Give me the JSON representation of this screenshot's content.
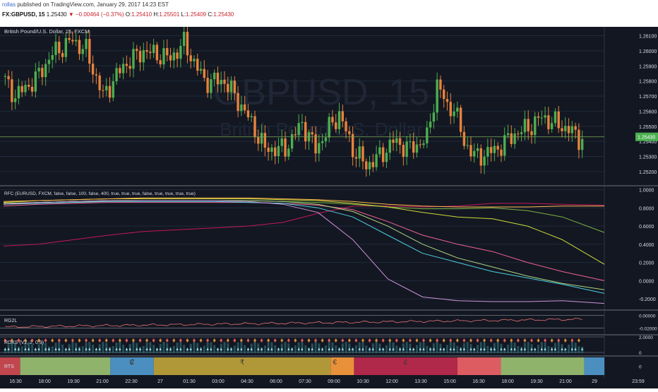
{
  "header": {
    "author": "rollas",
    "published": "published on TradingView.com, January 29, 2017 14:23 EST",
    "symbol": "FX:GBPUSD, 15",
    "last": "1.25430",
    "change": "▼ −0.00464 (−0.37%)",
    "o_label": "O:",
    "o_value": "1.25410",
    "h_label": "H:",
    "h_value": "1.25501",
    "l_label": "L:",
    "l_value": "1.25409",
    "c_label": "C:",
    "c_value": "1.25430"
  },
  "watermark": {
    "symbol": "GBPUSD, 15",
    "name": "British Pound/U.S. Dollar"
  },
  "colors": {
    "background": "#131722",
    "grid": "#1f2b3b",
    "up": "#4caf50",
    "down": "#e8823c",
    "axis_text": "#d8dde6",
    "last_price_bg": "#4caf50",
    "band_lines": "#8a8f9a"
  },
  "time_axis": [
    "16:30",
    "18:00",
    "19:30",
    "21:00",
    "22:30",
    "27",
    "01:30",
    "03:00",
    "04:30",
    "06:00",
    "07:30",
    "09:00",
    "10:30",
    "12:00",
    "13:30",
    "15:00",
    "16:30",
    "18:00",
    "19:30",
    "21:00",
    "29",
    "23:59"
  ],
  "chart_data": [
    {
      "type": "candlestick",
      "title": "British Pound/U.S. Dollar, 15, FXCM",
      "ylim": [
        1.2512,
        1.2614
      ],
      "y_ticks": [
        "1.26100",
        "1.26000",
        "1.25900",
        "1.25800",
        "1.25700",
        "1.25600",
        "1.25500",
        "1.25400",
        "1.25300",
        "1.25200"
      ],
      "last_price": "1.25430",
      "anchors": [
        {
          "x": 0,
          "y": 1.2583
        },
        {
          "x": 4,
          "y": 1.257
        },
        {
          "x": 10,
          "y": 1.2581
        },
        {
          "x": 15,
          "y": 1.2598
        },
        {
          "x": 21,
          "y": 1.2607
        },
        {
          "x": 25,
          "y": 1.26
        },
        {
          "x": 30,
          "y": 1.257
        },
        {
          "x": 36,
          "y": 1.259
        },
        {
          "x": 42,
          "y": 1.26
        },
        {
          "x": 50,
          "y": 1.2595
        },
        {
          "x": 54,
          "y": 1.2605
        },
        {
          "x": 60,
          "y": 1.258
        },
        {
          "x": 66,
          "y": 1.258
        },
        {
          "x": 72,
          "y": 1.256
        },
        {
          "x": 78,
          "y": 1.2535
        },
        {
          "x": 84,
          "y": 1.2535
        },
        {
          "x": 89,
          "y": 1.2552
        },
        {
          "x": 93,
          "y": 1.2535
        },
        {
          "x": 97,
          "y": 1.2549
        },
        {
          "x": 100,
          "y": 1.2558
        },
        {
          "x": 104,
          "y": 1.2535
        },
        {
          "x": 108,
          "y": 1.2524
        },
        {
          "x": 112,
          "y": 1.253
        },
        {
          "x": 116,
          "y": 1.254
        },
        {
          "x": 121,
          "y": 1.2535
        },
        {
          "x": 126,
          "y": 1.2542
        },
        {
          "x": 129,
          "y": 1.2578
        },
        {
          "x": 132,
          "y": 1.2563
        },
        {
          "x": 134,
          "y": 1.2562
        },
        {
          "x": 137,
          "y": 1.254
        },
        {
          "x": 140,
          "y": 1.253
        },
        {
          "x": 144,
          "y": 1.2532
        },
        {
          "x": 148,
          "y": 1.2537
        },
        {
          "x": 152,
          "y": 1.2545
        },
        {
          "x": 156,
          "y": 1.2549
        },
        {
          "x": 160,
          "y": 1.2556
        },
        {
          "x": 164,
          "y": 1.2552
        },
        {
          "x": 168,
          "y": 1.2548
        },
        {
          "x": 171,
          "y": 1.2542
        }
      ]
    },
    {
      "type": "line",
      "title": "RFC (EURUSD, FXCM, false, false, 100, false, 400, true, true, true, false, true, true, true, true)",
      "ylim": [
        -0.3,
        1.02
      ],
      "y_ticks": [
        "1.0000",
        "0.8000",
        "0.6000",
        "0.4000",
        "0.2000",
        "0.0000",
        "-0.2000"
      ],
      "x": [
        0,
        10,
        20,
        30,
        40,
        50,
        60,
        70,
        80,
        90,
        100,
        110,
        120,
        130,
        140,
        150,
        160,
        172
      ],
      "series": [
        {
          "color": "#c2185b",
          "values": [
            0.38,
            0.4,
            0.45,
            0.5,
            0.54,
            0.56,
            0.58,
            0.6,
            0.64,
            0.74,
            0.82,
            0.82,
            0.81,
            0.82,
            0.85,
            0.85,
            0.84,
            0.83
          ]
        },
        {
          "color": "#7cb342",
          "values": [
            0.84,
            0.86,
            0.87,
            0.87,
            0.88,
            0.88,
            0.88,
            0.88,
            0.87,
            0.86,
            0.84,
            0.81,
            0.79,
            0.79,
            0.8,
            0.77,
            0.7,
            0.53
          ]
        },
        {
          "color": "#cddc39",
          "values": [
            0.86,
            0.88,
            0.89,
            0.9,
            0.9,
            0.9,
            0.9,
            0.9,
            0.89,
            0.88,
            0.85,
            0.81,
            0.75,
            0.7,
            0.68,
            0.6,
            0.45,
            0.18
          ]
        },
        {
          "color": "#f06292",
          "values": [
            0.82,
            0.84,
            0.85,
            0.86,
            0.86,
            0.86,
            0.86,
            0.86,
            0.85,
            0.83,
            0.78,
            0.65,
            0.5,
            0.4,
            0.32,
            0.2,
            0.1,
            0.0
          ]
        },
        {
          "color": "#4dd0e1",
          "values": [
            0.84,
            0.85,
            0.86,
            0.87,
            0.87,
            0.87,
            0.87,
            0.86,
            0.85,
            0.8,
            0.7,
            0.5,
            0.3,
            0.2,
            0.1,
            0.03,
            -0.04,
            -0.14
          ]
        },
        {
          "color": "#aed581",
          "values": [
            0.85,
            0.86,
            0.87,
            0.88,
            0.88,
            0.88,
            0.88,
            0.88,
            0.87,
            0.84,
            0.76,
            0.6,
            0.4,
            0.25,
            0.15,
            0.05,
            -0.03,
            -0.1
          ]
        },
        {
          "color": "#ce93d8",
          "values": [
            0.84,
            0.86,
            0.87,
            0.88,
            0.88,
            0.88,
            0.88,
            0.87,
            0.84,
            0.75,
            0.45,
            0.02,
            -0.18,
            -0.22,
            -0.23,
            -0.23,
            -0.22,
            -0.25
          ]
        },
        {
          "color": "#ffb74d",
          "values": [
            0.87,
            0.88,
            0.89,
            0.9,
            0.91,
            0.91,
            0.91,
            0.91,
            0.9,
            0.89,
            0.87,
            0.84,
            0.82,
            0.81,
            0.81,
            0.81,
            0.82,
            0.82
          ]
        }
      ]
    },
    {
      "type": "line",
      "title": "RG2L",
      "ylim": [
        -0.028,
        0.006
      ],
      "y_ticks": [
        "0.00000",
        "-0.02000"
      ],
      "series": [
        {
          "color": "#e57373"
        }
      ]
    },
    {
      "type": "bar",
      "title": "RDXS (V2, 2, 0.9)",
      "y_ticks": [
        "2.0000",
        "0"
      ]
    },
    {
      "type": "table",
      "title": "RTS",
      "y_ticks": [
        "0"
      ],
      "segments": [
        {
          "from": 5,
          "to": 32,
          "color": "#8fb36a",
          "label": ""
        },
        {
          "from": 32,
          "to": 45,
          "color": "#4a8fc0",
          "label": "₡"
        },
        {
          "from": 45,
          "to": 98,
          "color": "#b09838",
          "label": "₹"
        },
        {
          "from": 98,
          "to": 105,
          "color": "#e8913a",
          "label": "€"
        },
        {
          "from": 105,
          "to": 136,
          "color": "#b0284a",
          "label": "£"
        },
        {
          "from": 136,
          "to": 149,
          "color": "#dd5c62",
          "label": ""
        },
        {
          "from": 149,
          "to": 174,
          "color": "#8fb36a",
          "label": ""
        },
        {
          "from": 174,
          "to": 180,
          "color": "#4a8fc0",
          "label": ""
        }
      ]
    }
  ]
}
